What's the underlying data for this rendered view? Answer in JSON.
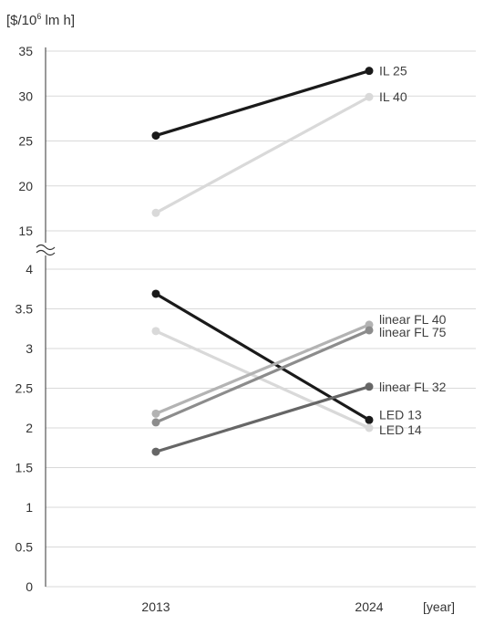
{
  "chart_data": {
    "type": "line",
    "ylabel_prefix": "[$/10",
    "ylabel_exp": "6",
    "ylabel_suffix": " lm h]",
    "xunit": "[year]",
    "categories": [
      "2013",
      "2024"
    ],
    "y_axis_break": true,
    "upper_panel": {
      "ylim": [
        15,
        35
      ],
      "ticks": [
        "15",
        "20",
        "25",
        "30",
        "35"
      ],
      "series": [
        {
          "name": "IL 25",
          "values": [
            25.6,
            32.8
          ],
          "color": "#1a1a1a"
        },
        {
          "name": "IL 40",
          "values": [
            17.0,
            29.9
          ],
          "color": "#d9d9d9"
        }
      ]
    },
    "lower_panel": {
      "ylim": [
        0,
        4
      ],
      "ticks": [
        "0",
        "0.5",
        "1",
        "1.5",
        "2",
        "2.5",
        "3",
        "3.5",
        "4"
      ],
      "series": [
        {
          "name": "LED 13",
          "values": [
            3.69,
            2.1
          ],
          "color": "#1a1a1a"
        },
        {
          "name": "LED 14",
          "values": [
            3.22,
            2.0
          ],
          "color": "#d9d9d9"
        },
        {
          "name": "linear FL 40",
          "values": [
            2.18,
            3.3
          ],
          "color": "#b3b3b3"
        },
        {
          "name": "linear FL 75",
          "values": [
            2.07,
            3.23
          ],
          "color": "#8c8c8c"
        },
        {
          "name": "linear FL 32",
          "values": [
            1.7,
            2.52
          ],
          "color": "#666666"
        }
      ]
    },
    "grid": true
  }
}
